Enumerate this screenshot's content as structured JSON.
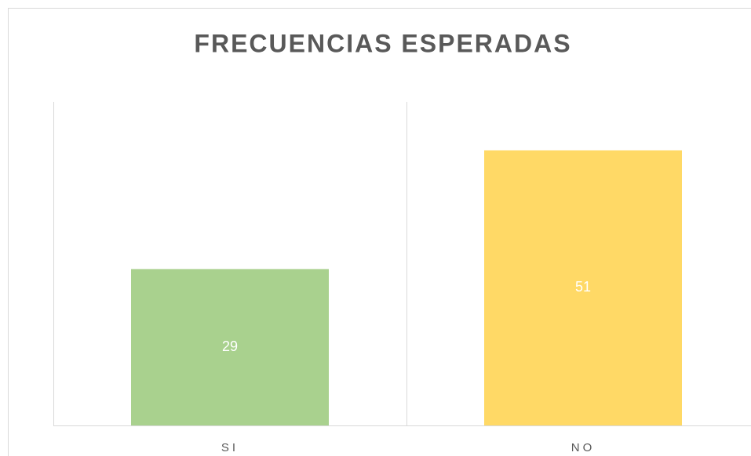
{
  "chart_data": {
    "type": "bar",
    "title": "FRECUENCIAS ESPERADAS",
    "categories": [
      "SI",
      "NO"
    ],
    "values": [
      29,
      51
    ],
    "colors": [
      "#a9d18e",
      "#ffd966"
    ],
    "ylim": [
      0,
      60
    ]
  }
}
